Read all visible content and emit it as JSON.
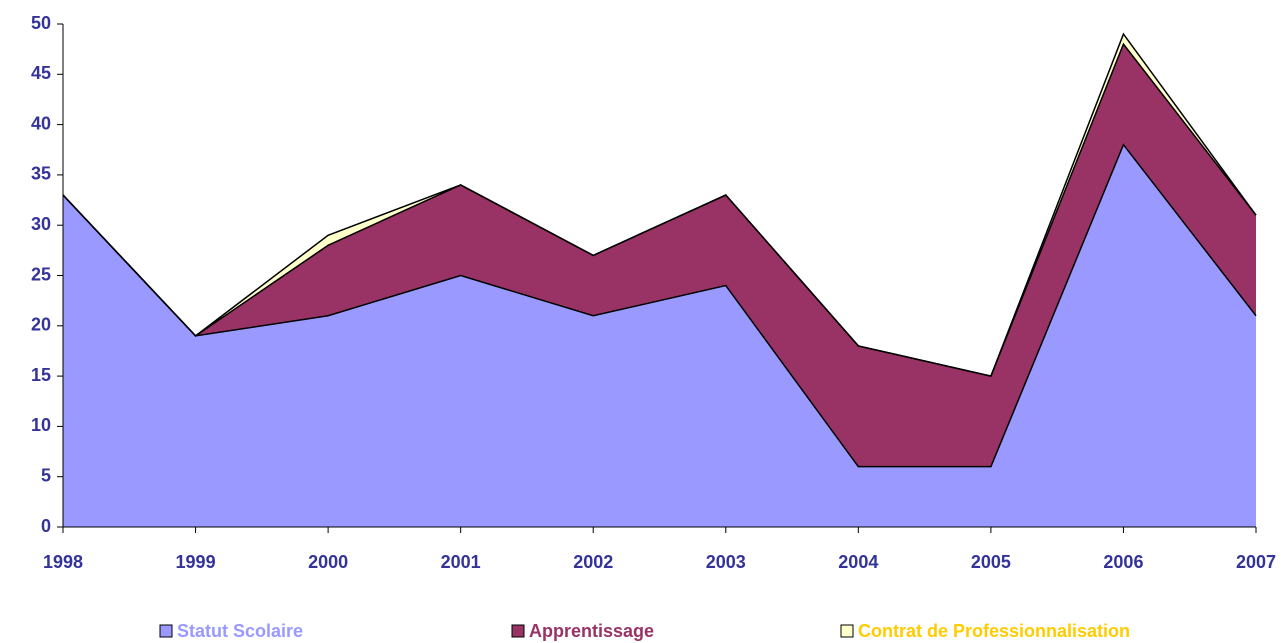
{
  "chart_data": {
    "type": "stacked_area",
    "categories": [
      "1998",
      "1999",
      "2000",
      "2001",
      "2002",
      "2003",
      "2004",
      "2005",
      "2006",
      "2007"
    ],
    "series": [
      {
        "name": "Statut Scolaire",
        "color": "#9999ff",
        "label_color": "#9999ff",
        "values": [
          33,
          19,
          21,
          25,
          21,
          24,
          6,
          6,
          38,
          21
        ]
      },
      {
        "name": "Apprentissage",
        "color": "#993366",
        "label_color": "#993366",
        "values": [
          0,
          0,
          7,
          9,
          6,
          9,
          12,
          9,
          10,
          10
        ]
      },
      {
        "name": "Contrat de Professionnalisation",
        "color": "#ffffcc",
        "label_color": "#ffcc00",
        "values": [
          0,
          0,
          1,
          0,
          0,
          0,
          0,
          0,
          1,
          0
        ]
      }
    ],
    "ylim": [
      0,
      50
    ],
    "yticks": [
      0,
      5,
      10,
      15,
      20,
      25,
      30,
      35,
      40,
      45,
      50
    ],
    "axis_color": "#333399",
    "legend": "bottom"
  }
}
